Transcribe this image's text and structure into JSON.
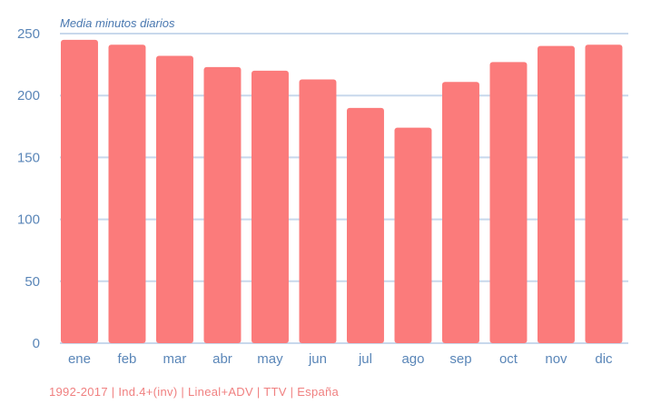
{
  "chart_data": {
    "type": "bar",
    "title": "Media minutos diarios",
    "categories": [
      "ene",
      "feb",
      "mar",
      "abr",
      "may",
      "jun",
      "jul",
      "ago",
      "sep",
      "oct",
      "nov",
      "dic"
    ],
    "values": [
      245,
      241,
      232,
      223,
      220,
      213,
      190,
      174,
      211,
      227,
      240,
      241
    ],
    "yticks": [
      0,
      50,
      100,
      150,
      200,
      250
    ],
    "ylim": [
      0,
      250
    ],
    "grid": true,
    "bar_color": "#fb7b7b",
    "grid_color": "#c8d8ec",
    "tick_color": "#5a86b8"
  },
  "source": "1992-2017 | Ind.4+(inv) | Lineal+ADV | TTV | España"
}
